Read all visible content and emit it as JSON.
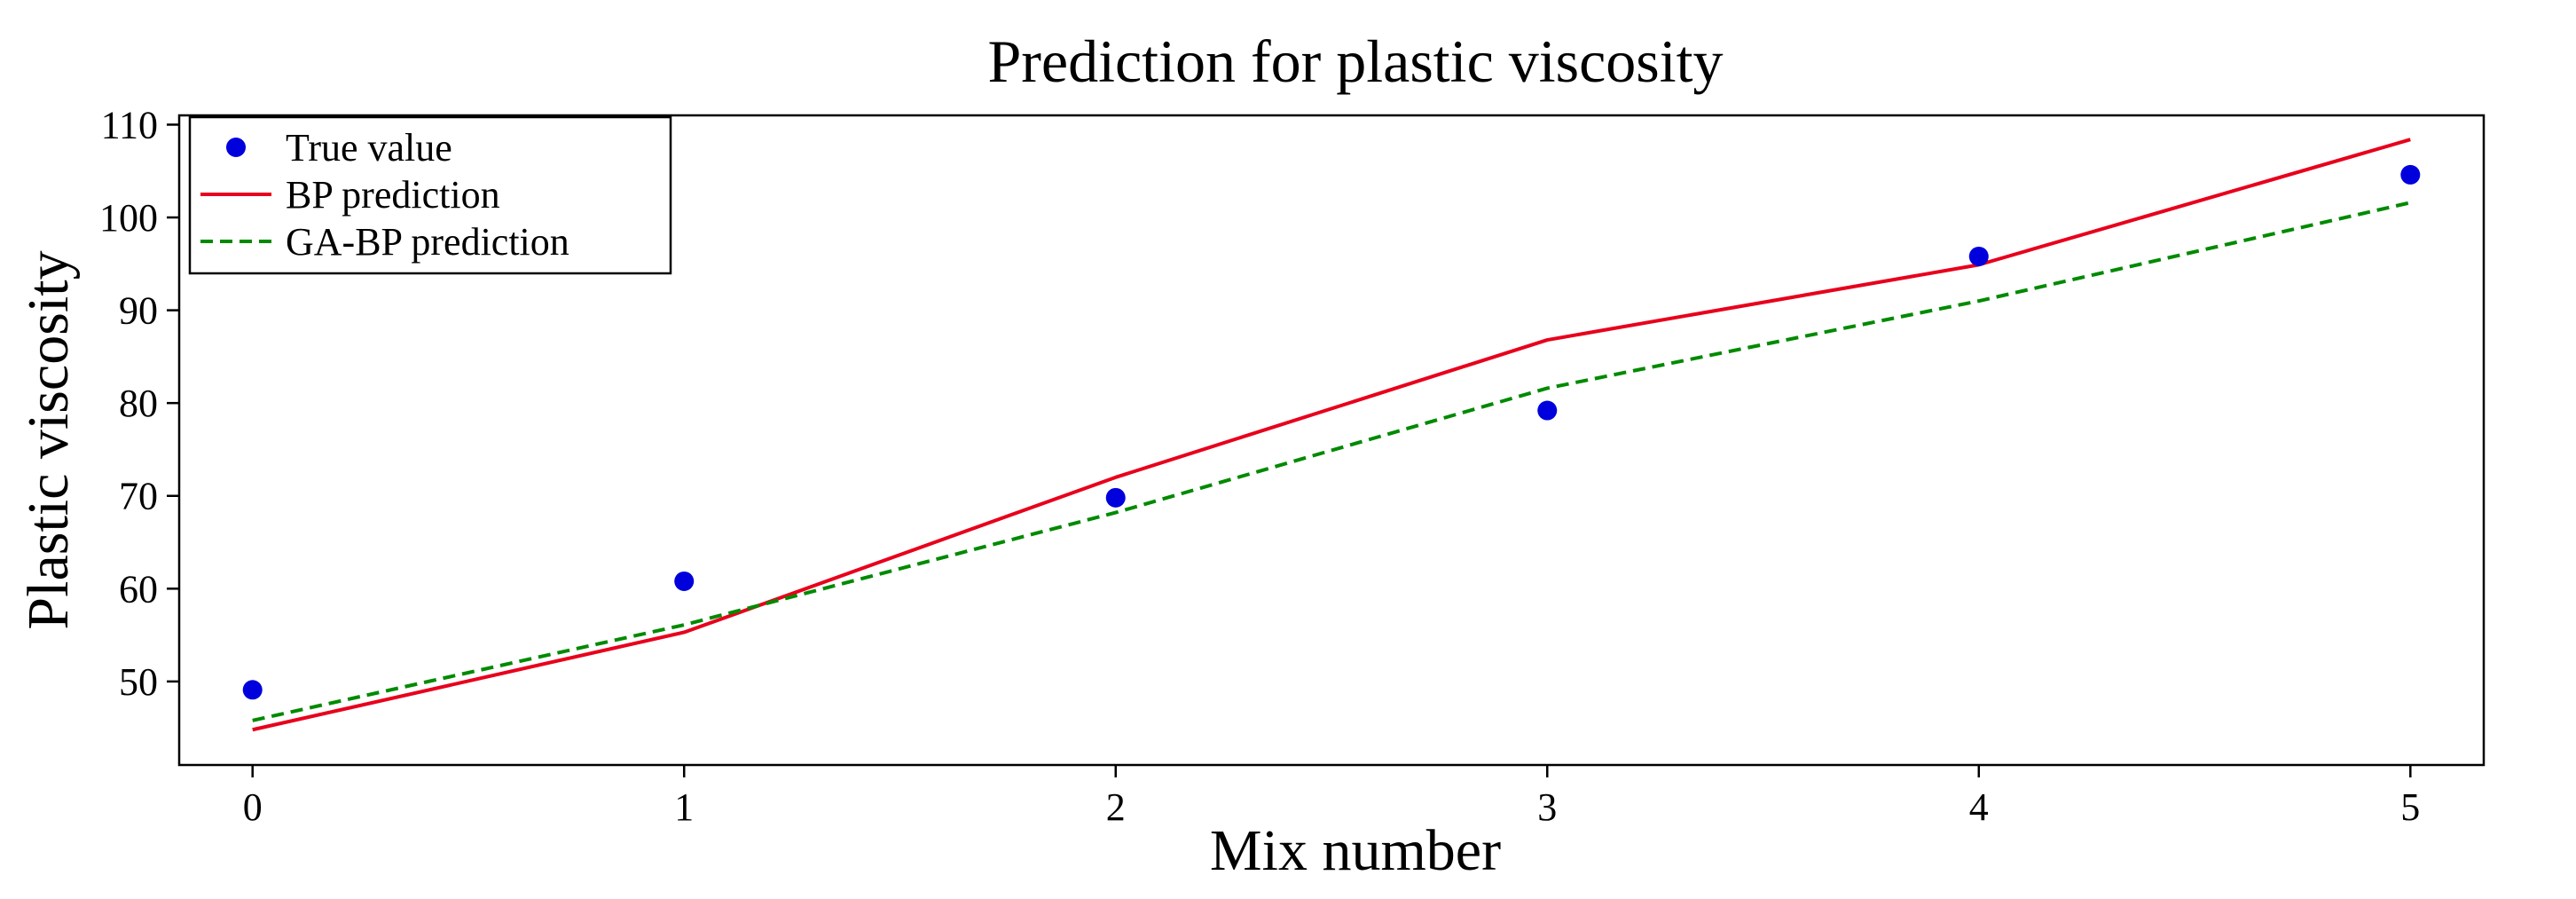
{
  "chart_data": {
    "type": "line",
    "title": "Prediction for plastic viscosity",
    "xlabel": "Mix number",
    "ylabel": "Plastic viscosity",
    "x": [
      0,
      1,
      2,
      3,
      4,
      5
    ],
    "xlim": [
      -0.17,
      5.17
    ],
    "ylim": [
      41,
      111
    ],
    "xticks": [
      "0",
      "1",
      "2",
      "3",
      "4",
      "5"
    ],
    "yticks": [
      50,
      60,
      70,
      80,
      90,
      100,
      110
    ],
    "grid": false,
    "legend_position": "top-left",
    "series": [
      {
        "name": "True value",
        "kind": "scatter",
        "color": "#0000dd",
        "values": [
          49.1,
          60.8,
          69.8,
          79.2,
          95.8,
          104.6
        ]
      },
      {
        "name": "BP prediction",
        "kind": "line",
        "style": "solid",
        "color": "#e8001c",
        "values": [
          44.8,
          55.3,
          72.0,
          86.8,
          94.9,
          108.4
        ]
      },
      {
        "name": "GA-BP prediction",
        "kind": "line",
        "style": "dashed",
        "color": "#008a00",
        "values": [
          45.8,
          56.1,
          68.2,
          81.6,
          91.0,
          101.6
        ]
      }
    ]
  }
}
